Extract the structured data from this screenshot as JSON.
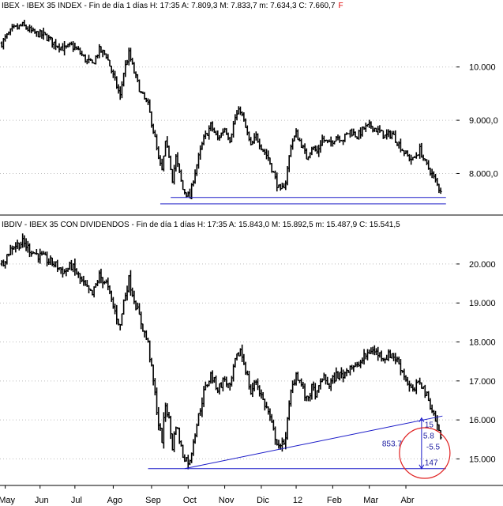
{
  "chart_data": [
    {
      "type": "ohlc",
      "header": "IBEX - IBEX 35 INDEX - Fin de día 1 días H: 17:35  A: 7.809,3  M: 7.833,7  m: 7.634,3  C: 7.660,7",
      "header_marker": "F",
      "y_ticks": [
        {
          "value": 10000,
          "label": "10.000"
        },
        {
          "value": 9000,
          "label": "9.000,0"
        },
        {
          "value": 8000,
          "label": "8.000,0"
        }
      ],
      "ylim": [
        7250,
        11050
      ],
      "series_points": [
        [
          0,
          10450
        ],
        [
          6,
          10700
        ],
        [
          12,
          10780
        ],
        [
          18,
          10640
        ],
        [
          24,
          10600
        ],
        [
          30,
          10450
        ],
        [
          36,
          10340
        ],
        [
          40,
          10400
        ],
        [
          44,
          10300
        ],
        [
          48,
          10140
        ],
        [
          52,
          10050
        ],
        [
          56,
          10320
        ],
        [
          60,
          10220
        ],
        [
          64,
          9830
        ],
        [
          68,
          9450
        ],
        [
          70,
          9900
        ],
        [
          73,
          10250
        ],
        [
          76,
          9900
        ],
        [
          80,
          9500
        ],
        [
          84,
          9280
        ],
        [
          88,
          8650
        ],
        [
          90,
          8250
        ],
        [
          92,
          8050
        ],
        [
          94,
          8550
        ],
        [
          96,
          8350
        ],
        [
          98,
          7900
        ],
        [
          100,
          8300
        ],
        [
          104,
          7700
        ],
        [
          108,
          7550
        ],
        [
          110,
          7900
        ],
        [
          113,
          8300
        ],
        [
          116,
          8650
        ],
        [
          120,
          8900
        ],
        [
          124,
          8650
        ],
        [
          128,
          8850
        ],
        [
          131,
          8650
        ],
        [
          134,
          9050
        ],
        [
          137,
          9200
        ],
        [
          140,
          8850
        ],
        [
          143,
          8500
        ],
        [
          146,
          8700
        ],
        [
          150,
          8450
        ],
        [
          153,
          8300
        ],
        [
          156,
          8000
        ],
        [
          158,
          7800
        ],
        [
          160,
          7650
        ],
        [
          163,
          7850
        ],
        [
          166,
          8550
        ],
        [
          169,
          8750
        ],
        [
          172,
          8550
        ],
        [
          175,
          8300
        ],
        [
          178,
          8500
        ],
        [
          181,
          8400
        ],
        [
          184,
          8650
        ],
        [
          188,
          8550
        ],
        [
          192,
          8700
        ],
        [
          196,
          8650
        ],
        [
          200,
          8800
        ],
        [
          204,
          8700
        ],
        [
          208,
          8850
        ],
        [
          212,
          8900
        ],
        [
          216,
          8800
        ],
        [
          220,
          8700
        ],
        [
          224,
          8750
        ],
        [
          228,
          8550
        ],
        [
          232,
          8350
        ],
        [
          236,
          8250
        ],
        [
          240,
          8450
        ],
        [
          243,
          8200
        ],
        [
          246,
          8050
        ],
        [
          249,
          7850
        ],
        [
          252,
          7660
        ]
      ],
      "horizontal_lines": [
        7550,
        7430
      ]
    },
    {
      "type": "ohlc",
      "header": "IBDIV - IBEX 35 CON DIVIDENDOS - Fin de día 1 días H: 17:35  A: 15.843,0  M: 15.892,5  m: 15.487,9  C: 15.541,5",
      "y_ticks": [
        {
          "value": 20000,
          "label": "20.000"
        },
        {
          "value": 19000,
          "label": "19.000"
        },
        {
          "value": 18000,
          "label": "18.000"
        },
        {
          "value": 17000,
          "label": "17.000"
        },
        {
          "value": 16000,
          "label": "16.000"
        },
        {
          "value": 15000,
          "label": "15.000"
        }
      ],
      "ylim": [
        14400,
        20850
      ],
      "series_points": [
        [
          0,
          20000
        ],
        [
          6,
          20450
        ],
        [
          12,
          20550
        ],
        [
          18,
          20300
        ],
        [
          24,
          20150
        ],
        [
          30,
          20000
        ],
        [
          36,
          19800
        ],
        [
          40,
          19950
        ],
        [
          44,
          19700
        ],
        [
          48,
          19400
        ],
        [
          52,
          19200
        ],
        [
          56,
          19700
        ],
        [
          60,
          19500
        ],
        [
          64,
          18900
        ],
        [
          68,
          18400
        ],
        [
          70,
          19050
        ],
        [
          73,
          19600
        ],
        [
          76,
          19100
        ],
        [
          80,
          18500
        ],
        [
          84,
          17950
        ],
        [
          88,
          16650
        ],
        [
          90,
          15900
        ],
        [
          92,
          15500
        ],
        [
          94,
          16400
        ],
        [
          96,
          16000
        ],
        [
          98,
          15300
        ],
        [
          100,
          15900
        ],
        [
          104,
          15100
        ],
        [
          108,
          14900
        ],
        [
          110,
          15500
        ],
        [
          113,
          16100
        ],
        [
          116,
          16700
        ],
        [
          120,
          17150
        ],
        [
          124,
          16800
        ],
        [
          128,
          17050
        ],
        [
          131,
          16800
        ],
        [
          134,
          17500
        ],
        [
          137,
          17800
        ],
        [
          140,
          17300
        ],
        [
          143,
          16700
        ],
        [
          146,
          17000
        ],
        [
          150,
          16500
        ],
        [
          153,
          16200
        ],
        [
          156,
          15700
        ],
        [
          158,
          15450
        ],
        [
          160,
          15250
        ],
        [
          163,
          15600
        ],
        [
          166,
          16700
        ],
        [
          169,
          17200
        ],
        [
          172,
          16900
        ],
        [
          175,
          16500
        ],
        [
          178,
          16800
        ],
        [
          181,
          16650
        ],
        [
          184,
          17100
        ],
        [
          188,
          16900
        ],
        [
          192,
          17150
        ],
        [
          196,
          17150
        ],
        [
          200,
          17400
        ],
        [
          204,
          17350
        ],
        [
          208,
          17600
        ],
        [
          212,
          17800
        ],
        [
          216,
          17700
        ],
        [
          220,
          17600
        ],
        [
          224,
          17700
        ],
        [
          228,
          17450
        ],
        [
          232,
          17050
        ],
        [
          236,
          16700
        ],
        [
          240,
          17000
        ],
        [
          243,
          16700
        ],
        [
          246,
          16400
        ],
        [
          249,
          16000
        ],
        [
          252,
          15541
        ]
      ],
      "trend_line": {
        "from": [
          106,
          14750
        ],
        "to": [
          254,
          16100
        ]
      },
      "support_line": 14750,
      "annotations": {
        "target_high": "15",
        "target_pct": "5.8",
        "target_neg": "-5.5",
        "target_low": "147",
        "distance": "853.7"
      }
    }
  ],
  "x_axis": {
    "months": [
      {
        "label": "May",
        "day": 3
      },
      {
        "label": "Jun",
        "day": 23
      },
      {
        "label": "Jul",
        "day": 43
      },
      {
        "label": "Ago",
        "day": 65
      },
      {
        "label": "Sep",
        "day": 87
      },
      {
        "label": "Oct",
        "day": 108
      },
      {
        "label": "Nov",
        "day": 129
      },
      {
        "label": "Dic",
        "day": 150
      },
      {
        "label": "12",
        "day": 170
      },
      {
        "label": "Feb",
        "day": 191
      },
      {
        "label": "Mar",
        "day": 212
      },
      {
        "label": "Abr",
        "day": 233
      }
    ],
    "xlim": [
      0,
      262
    ]
  },
  "colors": {
    "bars": "#000000",
    "lines": "#1a1ac8",
    "circle": "#e02020",
    "grid": "#bdbdbd"
  }
}
